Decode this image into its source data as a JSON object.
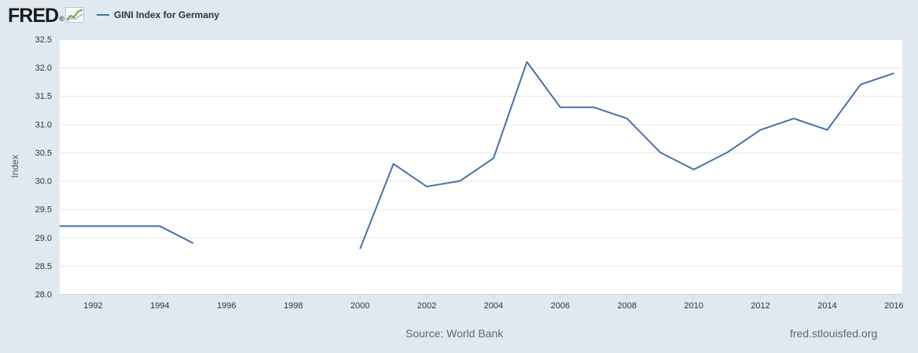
{
  "header": {
    "logo_text": "FRED",
    "logo_mark": "®",
    "logo_icon": "chart-trend-icon",
    "legend_label": "GINI Index for Germany"
  },
  "footer": {
    "source": "Source: World Bank",
    "site": "fred.stlouisfed.org"
  },
  "colors": {
    "line": "#4572a7",
    "plot_background": "#ffffff",
    "page_background": "#e1e9f0",
    "grid": "#e6e6e6"
  },
  "chart_data": {
    "type": "line",
    "title": "",
    "xlabel": "",
    "ylabel": "Index",
    "xlim": [
      1991,
      2016.25
    ],
    "ylim": [
      28.0,
      32.5
    ],
    "yticks": [
      "28.0",
      "28.5",
      "29.0",
      "29.5",
      "30.0",
      "30.5",
      "31.0",
      "31.5",
      "32.0",
      "32.5"
    ],
    "xticks": [
      "1992",
      "1994",
      "1996",
      "1998",
      "2000",
      "2002",
      "2004",
      "2006",
      "2008",
      "2010",
      "2012",
      "2014",
      "2016"
    ],
    "grid": "horizontal",
    "legend": "top-left",
    "series": [
      {
        "name": "GINI Index for Germany",
        "points": [
          [
            1991,
            29.2
          ],
          [
            1992,
            29.2
          ],
          [
            1993,
            29.2
          ],
          [
            1994,
            29.2
          ],
          [
            1995,
            28.9
          ],
          [
            1996,
            null
          ],
          [
            1997,
            null
          ],
          [
            1998,
            null
          ],
          [
            1999,
            null
          ],
          [
            2000,
            28.8
          ],
          [
            2001,
            30.3
          ],
          [
            2002,
            29.9
          ],
          [
            2003,
            30.0
          ],
          [
            2004,
            30.4
          ],
          [
            2005,
            32.1
          ],
          [
            2006,
            31.3
          ],
          [
            2007,
            31.3
          ],
          [
            2008,
            31.1
          ],
          [
            2009,
            30.5
          ],
          [
            2010,
            30.2
          ],
          [
            2011,
            30.5
          ],
          [
            2012,
            30.9
          ],
          [
            2013,
            31.1
          ],
          [
            2014,
            30.9
          ],
          [
            2015,
            31.7
          ],
          [
            2016,
            31.9
          ]
        ]
      }
    ]
  }
}
